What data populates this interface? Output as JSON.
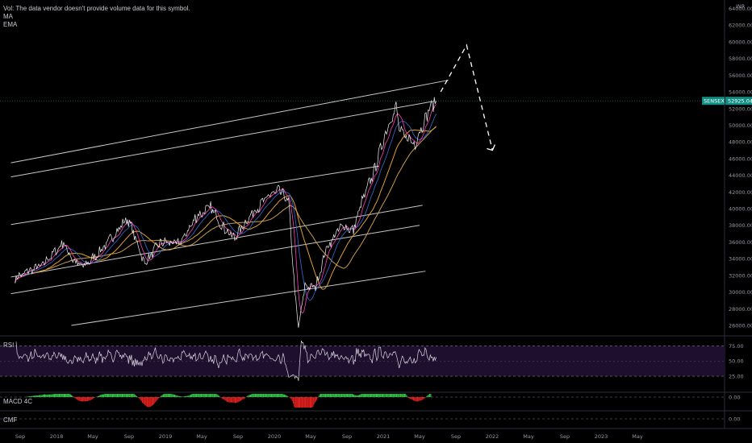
{
  "legend": {
    "vol": "Vol: The data vendor doesn't provide volume data for this symbol.",
    "ma": "MA",
    "ema": "EMA"
  },
  "currency": "INR",
  "symbol": {
    "name": "SENSEX",
    "last": "52925.04"
  },
  "colors": {
    "background": "#000000",
    "price": "#f0f0f0",
    "ma_fast": "#ff3ebf",
    "ma_mid": "#3a6bd6",
    "ema_1": "#e0a030",
    "ema_2": "#c89a55",
    "channel": "#c8c8c8",
    "rsi": "#d7d7e0",
    "rsi_band": "#1e0f2e",
    "macd_pos": "#2ac940",
    "macd_neg": "#e0201e",
    "symbol_tag": "#0f8d83"
  },
  "panes": {
    "rsi": {
      "label": "RSI",
      "levels": [
        "75.00",
        "50.00",
        "25.00"
      ]
    },
    "macd": {
      "label": "MACD 4C",
      "levels": [
        "0.00"
      ]
    },
    "cmf": {
      "label": "CMF",
      "levels": [
        "0.00"
      ]
    }
  },
  "chart_data": {
    "type": "line",
    "title": "",
    "y_axis": {
      "ticks": [
        "64000.00",
        "62000.00",
        "60000.00",
        "58000.00",
        "56000.00",
        "54000.00",
        "52000.00",
        "50000.00",
        "48000.00",
        "46000.00",
        "44000.00",
        "42000.00",
        "40000.00",
        "38000.00",
        "36000.00",
        "34000.00",
        "32000.00",
        "30000.00",
        "28000.00",
        "26000.00"
      ],
      "ylim": [
        25000,
        65000
      ]
    },
    "x_axis": {
      "ticks": [
        "Sep",
        "2018",
        "May",
        "Sep",
        "2019",
        "May",
        "Sep",
        "2020",
        "May",
        "Sep",
        "2021",
        "May",
        "Sep",
        "2022",
        "May",
        "Sep",
        "2023",
        "May"
      ]
    },
    "series": [
      {
        "values": [
          [
            "2017-08-15",
            31700
          ],
          [
            "2017-10-01",
            32500
          ],
          [
            "2017-11-15",
            33300
          ],
          [
            "2018-01-25",
            35900
          ],
          [
            "2018-02-25",
            33800
          ],
          [
            "2018-04-01",
            33000
          ],
          [
            "2018-06-01",
            35000
          ],
          [
            "2018-08-28",
            38900
          ],
          [
            "2018-10-25",
            33400
          ],
          [
            "2018-12-15",
            36000
          ],
          [
            "2019-02-20",
            35800
          ],
          [
            "2019-04-15",
            39000
          ],
          [
            "2019-06-03",
            40200
          ],
          [
            "2019-07-20",
            37500
          ],
          [
            "2019-08-23",
            36500
          ],
          [
            "2019-10-20",
            39500
          ],
          [
            "2019-12-20",
            41600
          ],
          [
            "2020-01-20",
            42200
          ],
          [
            "2020-02-20",
            40800
          ],
          [
            "2020-03-12",
            30000
          ],
          [
            "2020-03-24",
            25600
          ],
          [
            "2020-04-15",
            30800
          ],
          [
            "2020-05-20",
            30500
          ],
          [
            "2020-06-25",
            35100
          ],
          [
            "2020-08-15",
            38000
          ],
          [
            "2020-09-25",
            37400
          ],
          [
            "2020-10-20",
            40500
          ],
          [
            "2020-11-30",
            44200
          ],
          [
            "2020-12-31",
            47800
          ],
          [
            "2021-01-21",
            50100
          ],
          [
            "2021-02-15",
            52200
          ],
          [
            "2021-03-01",
            49000
          ],
          [
            "2021-04-20",
            47900
          ],
          [
            "2021-05-20",
            50500
          ],
          [
            "2021-06-10",
            52300
          ],
          [
            "2021-06-30",
            52925
          ]
        ]
      }
    ],
    "projection": [
      [
        "2021-07-15",
        54000
      ],
      [
        "2021-10-10",
        59600
      ],
      [
        "2022-01-05",
        47000
      ]
    ],
    "channel_lines": [
      [
        [
          "2017-08-01",
          43800
        ],
        [
          "2021-06-25",
          52900
        ]
      ],
      [
        [
          "2017-08-01",
          45500
        ],
        [
          "2021-08-10",
          55400
        ]
      ],
      [
        [
          "2017-08-01",
          38100
        ],
        [
          "2020-12-20",
          45100
        ]
      ],
      [
        [
          "2017-08-01",
          31800
        ],
        [
          "2021-05-15",
          40400
        ]
      ],
      [
        [
          "2017-08-01",
          29800
        ],
        [
          "2021-05-05",
          38000
        ]
      ],
      [
        [
          "2018-02-20",
          26000
        ],
        [
          "2021-05-25",
          32500
        ]
      ]
    ]
  }
}
